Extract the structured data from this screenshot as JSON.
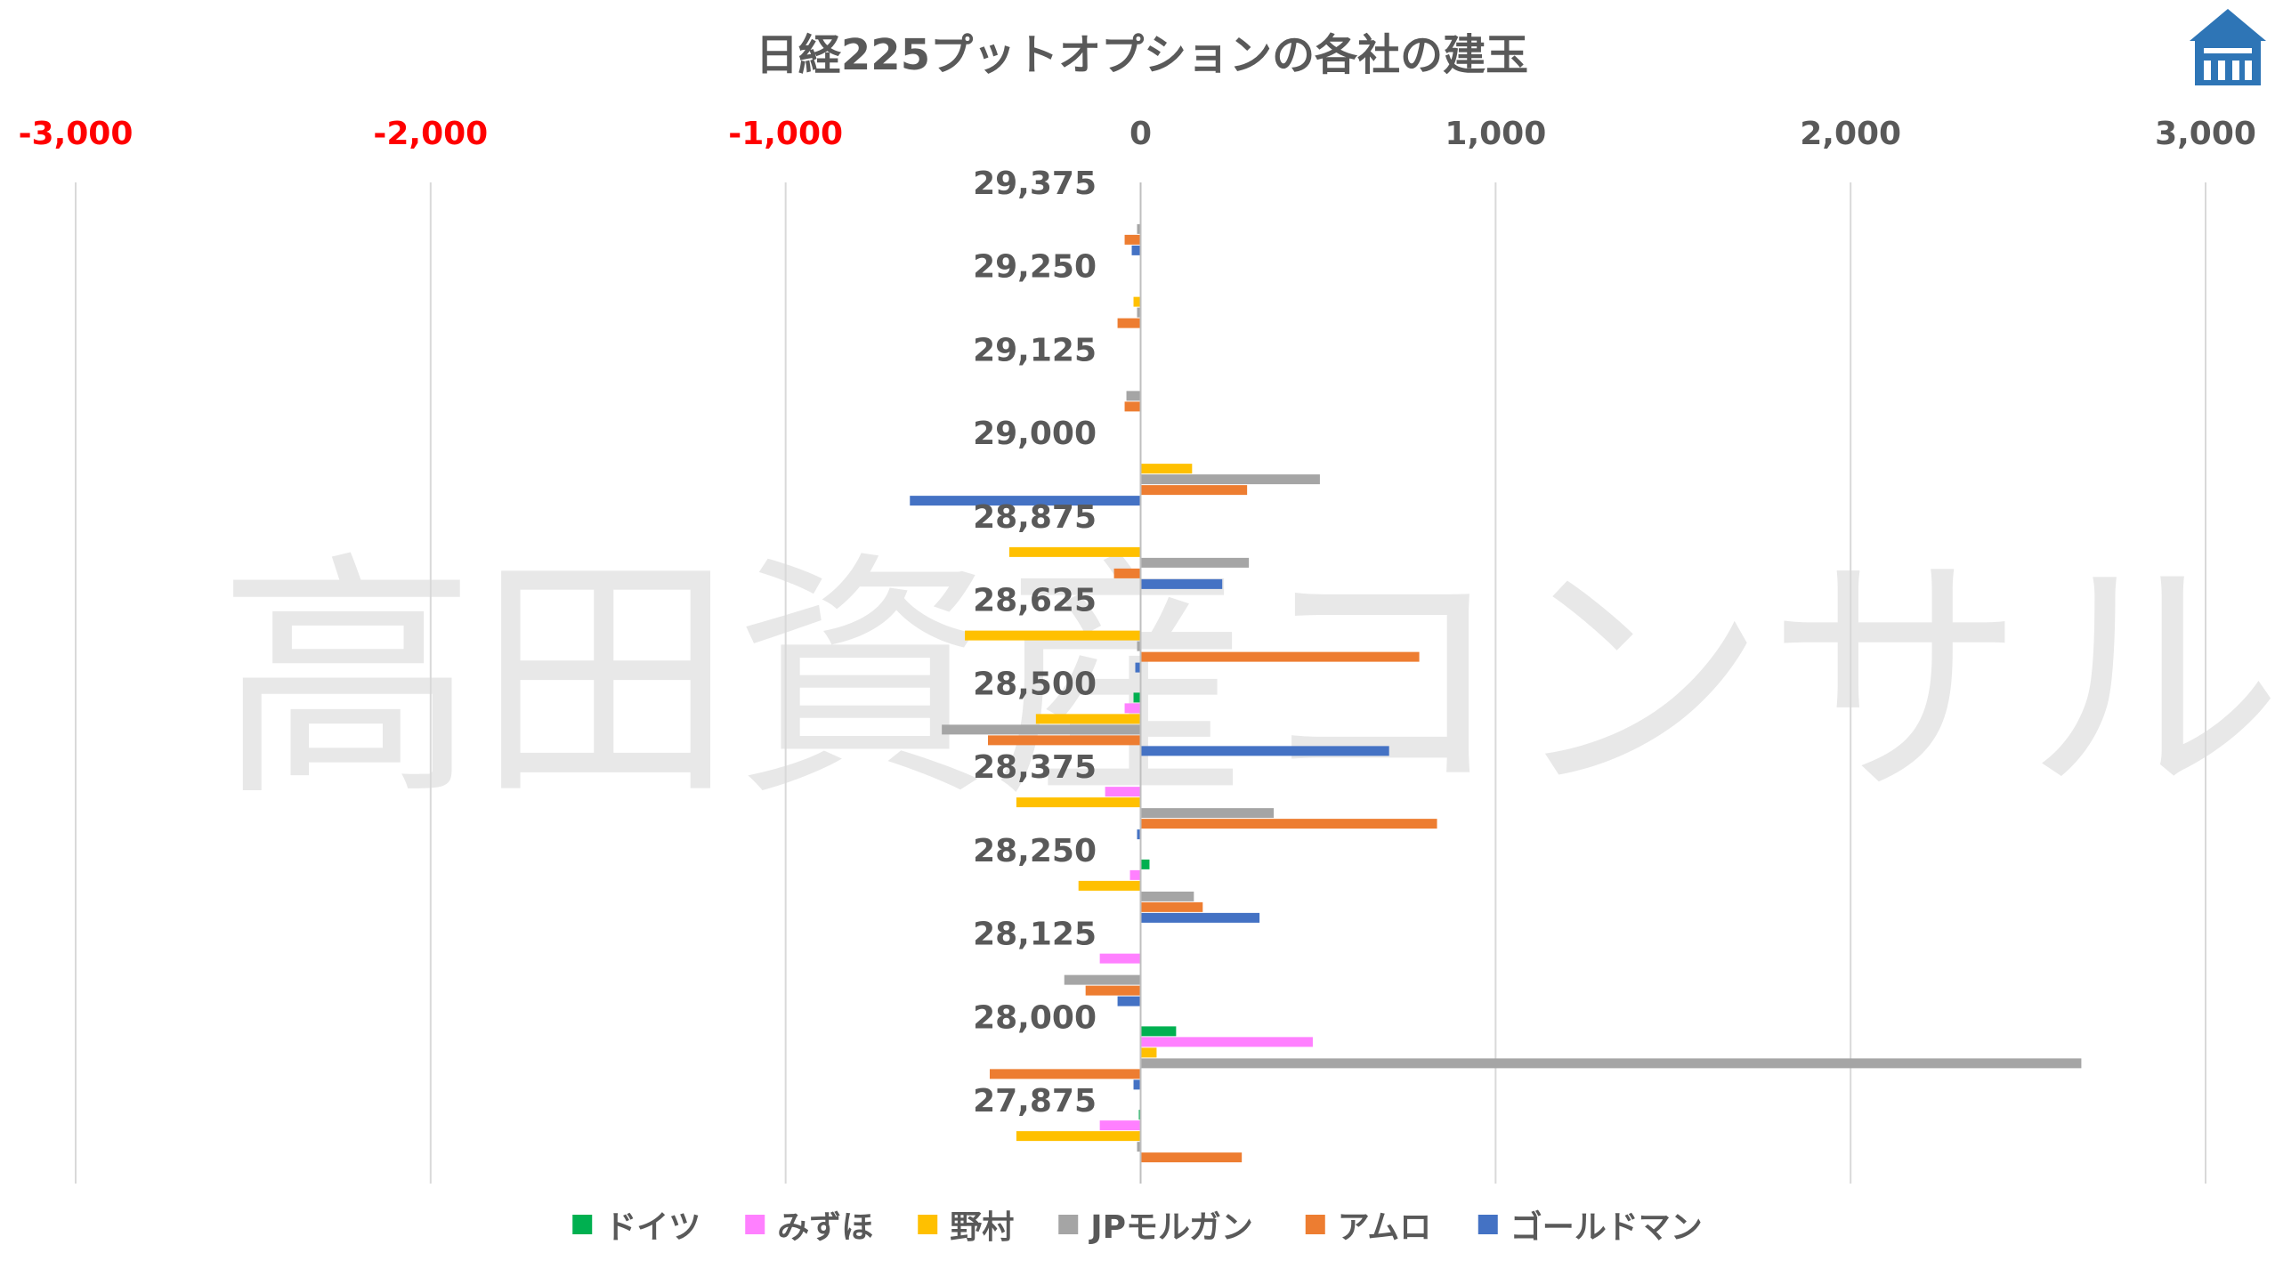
{
  "chart_data": {
    "type": "bar",
    "orientation": "horizontal",
    "title": "日経225プットオプションの各社の建玉",
    "watermark": "高田資産コンサル",
    "xlim": [
      -3000,
      3000
    ],
    "x_ticks": [
      -3000,
      -2000,
      -1000,
      0,
      1000,
      2000,
      3000
    ],
    "x_tick_labels": [
      "-3,000",
      "-2,000",
      "-1,000",
      "0",
      "1,000",
      "2,000",
      "3,000"
    ],
    "negative_tick_color": "#FF0000",
    "positive_tick_color": "#595959",
    "grid": "vertical",
    "legend_position": "bottom",
    "categories": [
      "29,375",
      "29,250",
      "29,125",
      "29,000",
      "28,875",
      "28,625",
      "28,500",
      "28,375",
      "28,250",
      "28,125",
      "28,000",
      "27,875"
    ],
    "series": [
      {
        "name": "ドイツ",
        "color": "#00B050",
        "values": [
          0,
          0,
          0,
          0,
          0,
          0,
          -20,
          0,
          25,
          0,
          100,
          -5
        ]
      },
      {
        "name": "みずほ",
        "color": "#FF80FF",
        "values": [
          0,
          0,
          0,
          0,
          0,
          0,
          -45,
          -100,
          -30,
          -115,
          485,
          -115
        ]
      },
      {
        "name": "野村",
        "color": "#FFC000",
        "values": [
          0,
          -20,
          0,
          145,
          -370,
          -495,
          -295,
          -350,
          -175,
          0,
          45,
          -350
        ]
      },
      {
        "name": "JPモルガン",
        "color": "#A5A5A5",
        "values": [
          -10,
          -10,
          -40,
          505,
          305,
          -10,
          -560,
          375,
          150,
          -215,
          2650,
          -10
        ]
      },
      {
        "name": "アムロ",
        "color": "#ED7D31",
        "values": [
          -45,
          -65,
          -45,
          300,
          -75,
          785,
          -430,
          835,
          175,
          -155,
          -425,
          285
        ]
      },
      {
        "name": "ゴールドマン",
        "color": "#4472C4",
        "values": [
          -25,
          0,
          0,
          -650,
          230,
          -15,
          700,
          -10,
          335,
          -65,
          -20,
          0
        ]
      }
    ]
  },
  "logo": {
    "name": "company-logo",
    "color": "#2E75B6"
  }
}
